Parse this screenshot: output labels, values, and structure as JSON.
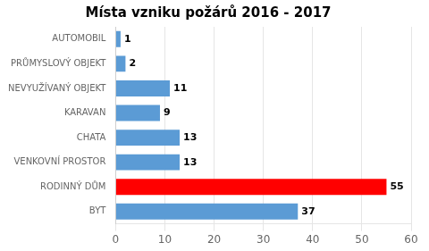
{
  "chart_data": {
    "type": "bar",
    "orientation": "horizontal",
    "title": "Místa vzniku požárů 2016 - 2017",
    "categories": [
      "BYT",
      "RODINNÝ DŮM",
      "VENKOVNÍ PROSTOR",
      "CHATA",
      "KARAVAN",
      "NEVYUŽÍVANÝ OBJEKT",
      "PRŮMYSLOVÝ OBJEKT",
      "AUTOMOBIL"
    ],
    "values": [
      37,
      55,
      13,
      13,
      9,
      11,
      2,
      1
    ],
    "colors": [
      "#5b9bd5",
      "#ff0000",
      "#5b9bd5",
      "#5b9bd5",
      "#5b9bd5",
      "#5b9bd5",
      "#5b9bd5",
      "#5b9bd5"
    ],
    "xlim": [
      0,
      60
    ],
    "xticks": [
      0,
      10,
      20,
      30,
      40,
      50,
      60
    ],
    "grid": true,
    "data_labels": true
  }
}
